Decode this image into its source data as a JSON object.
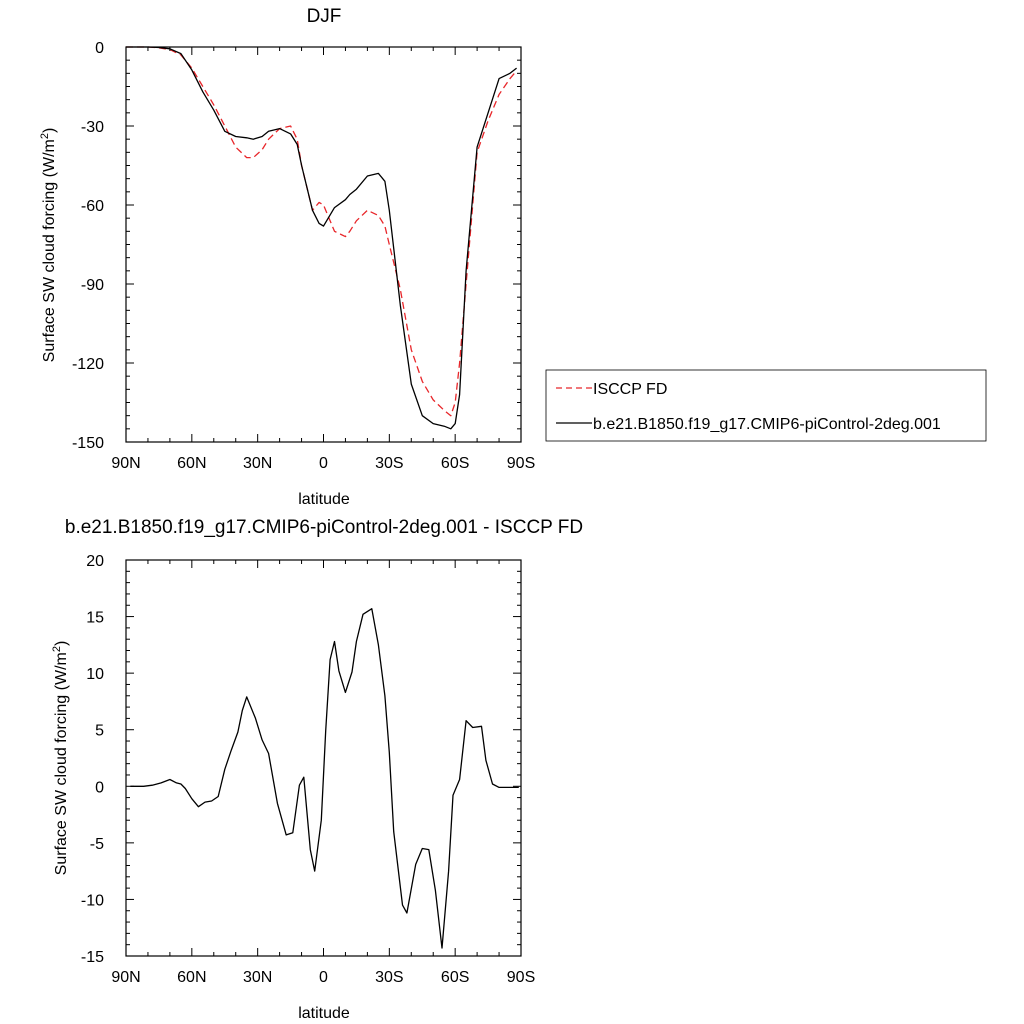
{
  "chart_data": [
    {
      "type": "line",
      "title": "DJF",
      "xlabel": "latitude",
      "ylabel": "Surface SW cloud forcing (W/m",
      "ylabel_sup": "2",
      "ylabel_close": ")",
      "xlim": [
        90,
        -90
      ],
      "ylim": [
        -150,
        0
      ],
      "xticks": [
        {
          "value": 90,
          "label": "90N"
        },
        {
          "value": 60,
          "label": "60N"
        },
        {
          "value": 30,
          "label": "30N"
        },
        {
          "value": 0,
          "label": "0"
        },
        {
          "value": -30,
          "label": "30S"
        },
        {
          "value": -60,
          "label": "60S"
        },
        {
          "value": -90,
          "label": "90S"
        }
      ],
      "yticks": [
        0,
        -30,
        -60,
        -90,
        -120,
        -150
      ],
      "grid": false,
      "legend_position": "right",
      "series": [
        {
          "name": "ISCCP FD",
          "color": "#e8262a",
          "dash": "dashed",
          "x": [
            90,
            85,
            80,
            75,
            70,
            65,
            60,
            55,
            50,
            45,
            40,
            35,
            32,
            28,
            25,
            20,
            15,
            12,
            10,
            5,
            2,
            0,
            -5,
            -10,
            -12,
            -15,
            -20,
            -25,
            -28,
            -30,
            -35,
            -40,
            -45,
            -50,
            -55,
            -58,
            -60,
            -62,
            -65,
            -70,
            -75,
            -80,
            -85,
            -88
          ],
          "y": [
            0,
            0,
            0,
            -0.3,
            -1,
            -3,
            -8,
            -15,
            -22,
            -30,
            -38,
            -42,
            -42,
            -39,
            -35,
            -31,
            -30,
            -35,
            -45,
            -62,
            -59,
            -60,
            -70,
            -72,
            -70,
            -66,
            -62,
            -64,
            -68,
            -75,
            -92,
            -115,
            -127,
            -134,
            -138,
            -140,
            -135,
            -120,
            -90,
            -40,
            -28,
            -18,
            -12,
            -9
          ]
        },
        {
          "name": "b.e21.B1850.f19_g17.CMIP6-piControl-2deg.001",
          "color": "#000000",
          "dash": "solid",
          "x": [
            90,
            85,
            80,
            75,
            70,
            65,
            60,
            55,
            50,
            45,
            40,
            35,
            32,
            28,
            25,
            20,
            15,
            12,
            10,
            5,
            2,
            0,
            -5,
            -10,
            -12,
            -15,
            -20,
            -25,
            -28,
            -30,
            -35,
            -40,
            -45,
            -50,
            -55,
            -58,
            -60,
            -62,
            -65,
            -70,
            -75,
            -80,
            -85,
            -88
          ],
          "y": [
            0,
            0,
            0,
            -0.2,
            -0.7,
            -2.5,
            -8.7,
            -17,
            -24,
            -32,
            -34,
            -34.5,
            -35,
            -34,
            -32,
            -31,
            -33,
            -37,
            -45,
            -62,
            -67,
            -68,
            -61,
            -58,
            -56,
            -54,
            -49,
            -48,
            -51,
            -62,
            -98,
            -128,
            -140,
            -143,
            -144,
            -145,
            -143,
            -132,
            -85,
            -38,
            -25,
            -12,
            -10,
            -8
          ]
        }
      ]
    },
    {
      "type": "line",
      "title": "b.e21.B1850.f19_g17.CMIP6-piControl-2deg.001 - ISCCP FD",
      "xlabel": "latitude",
      "ylabel": "Surface SW cloud forcing (W/m",
      "ylabel_sup": "2",
      "ylabel_close": ")",
      "xlim": [
        90,
        -90
      ],
      "ylim": [
        -15,
        20
      ],
      "xticks": [
        {
          "value": 90,
          "label": "90N"
        },
        {
          "value": 60,
          "label": "60N"
        },
        {
          "value": 30,
          "label": "30N"
        },
        {
          "value": 0,
          "label": "0"
        },
        {
          "value": -30,
          "label": "30S"
        },
        {
          "value": -60,
          "label": "60S"
        },
        {
          "value": -90,
          "label": "90S"
        }
      ],
      "yticks": [
        20,
        15,
        10,
        5,
        0,
        -5,
        -10,
        -15
      ],
      "grid": false,
      "series": [
        {
          "color": "#000000",
          "dash": "solid",
          "x": [
            88,
            82,
            78,
            74,
            70,
            67,
            65,
            63,
            60,
            57,
            54,
            51,
            48,
            45,
            42,
            39,
            37,
            35,
            31,
            28,
            25,
            21,
            17,
            14,
            11,
            9,
            6,
            4,
            1,
            -1,
            -3,
            -5,
            -7,
            -10,
            -13,
            -15,
            -18,
            -22,
            -25,
            -28,
            -30,
            -32,
            -36,
            -38,
            -42,
            -45,
            -48,
            -51,
            -54,
            -57,
            -59,
            -62,
            -65,
            -68,
            -72,
            -74,
            -77,
            -80,
            -83,
            -86,
            -89
          ],
          "y": [
            0,
            0,
            0.1,
            0.3,
            0.6,
            0.3,
            0.2,
            -0.2,
            -1.1,
            -1.8,
            -1.4,
            -1.3,
            -0.9,
            1.5,
            3.2,
            4.8,
            6.7,
            7.9,
            6,
            4.1,
            2.9,
            -1.5,
            -4.3,
            -4.1,
            0.1,
            0.8,
            -5.6,
            -7.5,
            -3,
            4.9,
            11.2,
            12.8,
            10.2,
            8.3,
            10.1,
            12.8,
            15.2,
            15.7,
            12.5,
            8,
            3,
            -4,
            -10.5,
            -11.2,
            -6.9,
            -5.5,
            -5.6,
            -9.2,
            -14.3,
            -7.5,
            -0.8,
            0.6,
            5.8,
            5.2,
            5.3,
            2.3,
            0.2,
            -0.1,
            -0.1,
            -0.1,
            -0.1
          ]
        }
      ]
    }
  ]
}
